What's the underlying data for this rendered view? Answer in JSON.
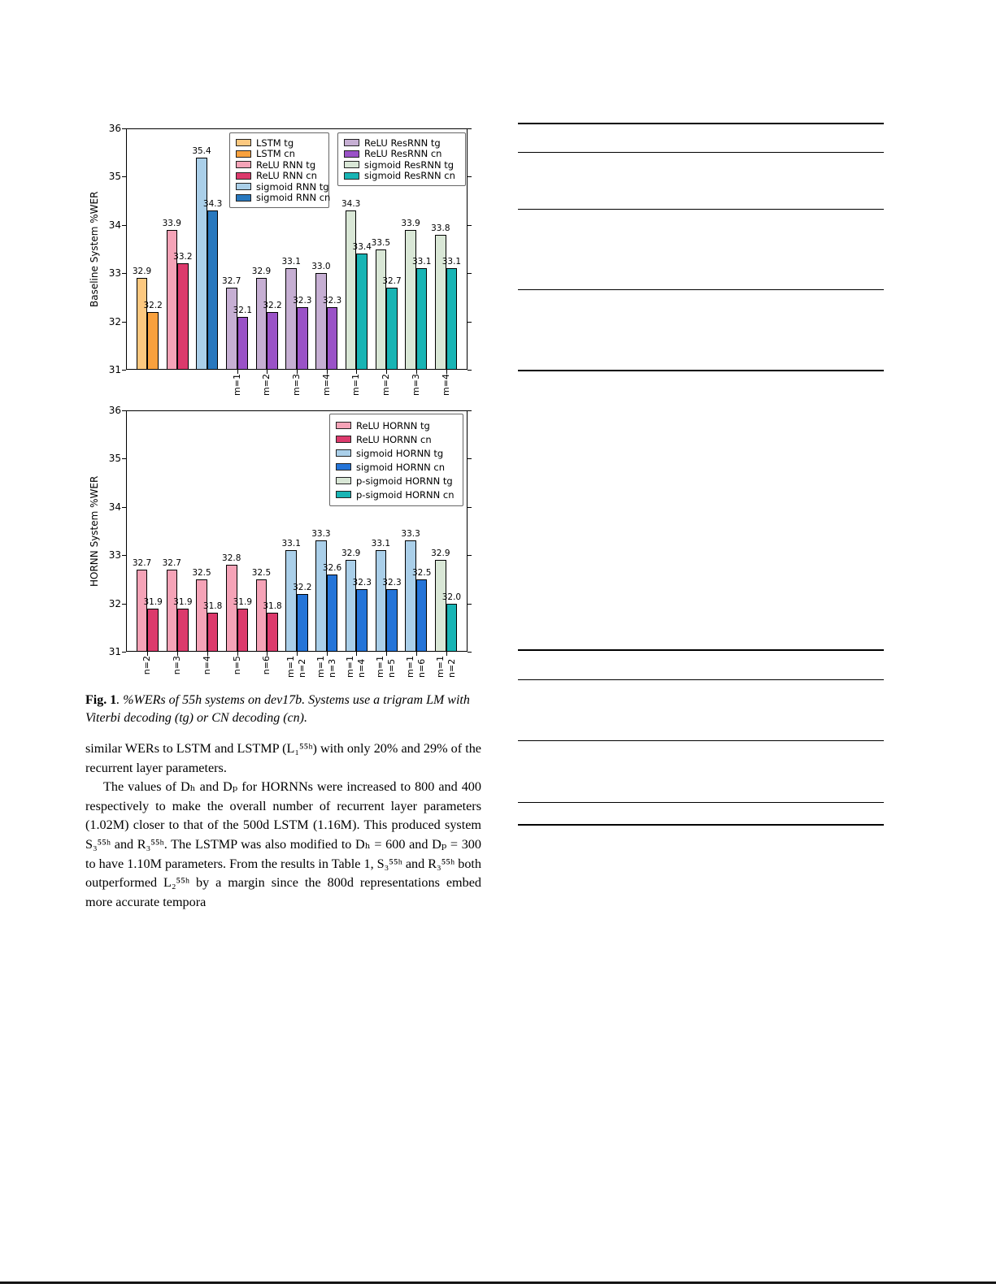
{
  "figure": {
    "caption_label": "Fig. 1",
    "caption_text": ". %WERs of 55h systems on dev17b. Systems use a trigram LM with Viterbi decoding (tg) or CN decoding (cn)."
  },
  "body": {
    "para1": "similar WERs to LSTM and LSTMP (L₁⁵⁵ʰ) with only 20% and 29% of the recurrent layer parameters.",
    "para2": "The values of Dₕ and Dₚ for HORNNs were increased to 800 and 400 respectively to make the overall number of recurrent layer parameters (1.02M) closer to that of the 500d LSTM (1.16M). This produced system S₃⁵⁵ʰ and R₃⁵⁵ʰ. The LSTMP was also modified to Dₕ = 600 and Dₚ = 300 to have 1.10M parameters. From the results in Table 1, S₃⁵⁵ʰ and R₃⁵⁵ʰ both outperformed L₂⁵⁵ʰ by a margin since the 800d representations embed more accurate tempora"
  },
  "chart_data": [
    {
      "type": "bar",
      "ylabel": "Baseline System %WER",
      "ylim": [
        31,
        36
      ],
      "yticks": [
        31,
        32,
        33,
        34,
        35,
        36
      ],
      "grid": false,
      "legend_position": "upper-left-and-upper-right-inside",
      "palette": {
        "lstm_tg": "#fcc87f",
        "lstm_cn": "#f9a13d",
        "relu_rnn_tg": "#f5a3b7",
        "relu_rnn_cn": "#dc3a6c",
        "sigmoid_rnn_tg": "#aacfe9",
        "sigmoid_rnn_cn": "#2878be",
        "relu_resrnn_tg": "#c6afd3",
        "relu_resrnn_cn": "#9a52c7",
        "sigmoid_resrnn_tg": "#d9e7d6",
        "sigmoid_resrnn_cn": "#18b4b4"
      },
      "legend_boxes": [
        [
          {
            "label": "LSTM tg",
            "color": "lstm_tg"
          },
          {
            "label": "LSTM cn",
            "color": "lstm_cn"
          },
          {
            "label": "ReLU RNN tg",
            "color": "relu_rnn_tg"
          },
          {
            "label": "ReLU RNN cn",
            "color": "relu_rnn_cn"
          },
          {
            "label": "sigmoid RNN tg",
            "color": "sigmoid_rnn_tg"
          },
          {
            "label": "sigmoid RNN cn",
            "color": "sigmoid_rnn_cn"
          }
        ],
        [
          {
            "label": "ReLU ResRNN tg",
            "color": "relu_resrnn_tg"
          },
          {
            "label": "ReLU ResRNN cn",
            "color": "relu_resrnn_cn"
          },
          {
            "label": "sigmoid ResRNN tg",
            "color": "sigmoid_resrnn_tg"
          },
          {
            "label": "sigmoid ResRNN cn",
            "color": "sigmoid_resrnn_cn"
          }
        ]
      ],
      "groups": [
        {
          "xlabels": [],
          "bars": [
            {
              "value": 32.9,
              "color": "lstm_tg"
            },
            {
              "value": 32.2,
              "color": "lstm_cn"
            }
          ]
        },
        {
          "xlabels": [],
          "bars": [
            {
              "value": 33.9,
              "color": "relu_rnn_tg"
            },
            {
              "value": 33.2,
              "color": "relu_rnn_cn"
            }
          ]
        },
        {
          "xlabels": [],
          "bars": [
            {
              "value": 35.4,
              "color": "sigmoid_rnn_tg"
            },
            {
              "value": 34.3,
              "color": "sigmoid_rnn_cn"
            }
          ]
        },
        {
          "xlabels": [
            "m=1"
          ],
          "bars": [
            {
              "value": 32.7,
              "color": "relu_resrnn_tg"
            },
            {
              "value": 32.1,
              "color": "relu_resrnn_cn"
            }
          ]
        },
        {
          "xlabels": [
            "m=2"
          ],
          "bars": [
            {
              "value": 32.9,
              "color": "relu_resrnn_tg"
            },
            {
              "value": 32.2,
              "color": "relu_resrnn_cn"
            }
          ]
        },
        {
          "xlabels": [
            "m=3"
          ],
          "bars": [
            {
              "value": 33.1,
              "color": "relu_resrnn_tg"
            },
            {
              "value": 32.3,
              "color": "relu_resrnn_cn"
            }
          ]
        },
        {
          "xlabels": [
            "m=4"
          ],
          "bars": [
            {
              "value": 33.0,
              "color": "relu_resrnn_tg"
            },
            {
              "value": 32.3,
              "color": "relu_resrnn_cn"
            }
          ]
        },
        {
          "xlabels": [
            "m=1"
          ],
          "bars": [
            {
              "value": 34.3,
              "color": "sigmoid_resrnn_tg"
            },
            {
              "value": 33.4,
              "color": "sigmoid_resrnn_cn"
            }
          ]
        },
        {
          "xlabels": [
            "m=2"
          ],
          "bars": [
            {
              "value": 33.5,
              "color": "sigmoid_resrnn_tg"
            },
            {
              "value": 32.7,
              "color": "sigmoid_resrnn_cn"
            }
          ]
        },
        {
          "xlabels": [
            "m=3"
          ],
          "bars": [
            {
              "value": 33.9,
              "color": "sigmoid_resrnn_tg"
            },
            {
              "value": 33.1,
              "color": "sigmoid_resrnn_cn"
            }
          ]
        },
        {
          "xlabels": [
            "m=4"
          ],
          "bars": [
            {
              "value": 33.8,
              "color": "sigmoid_resrnn_tg"
            },
            {
              "value": 33.1,
              "color": "sigmoid_resrnn_cn"
            }
          ]
        }
      ]
    },
    {
      "type": "bar",
      "ylabel": "HORNN System %WER",
      "ylim": [
        31,
        36
      ],
      "yticks": [
        31,
        32,
        33,
        34,
        35,
        36
      ],
      "grid": false,
      "legend_position": "upper-right-inside",
      "palette": {
        "relu_hornn_tg": "#f5a3b7",
        "relu_hornn_cn": "#dc3a6c",
        "sigmoid_hornn_tg": "#aacfe9",
        "sigmoid_hornn_cn": "#2474d8",
        "psigmoid_hornn_tg": "#d9e7d6",
        "psigmoid_hornn_cn": "#18b4b4"
      },
      "legend_boxes": [
        [
          {
            "label": "ReLU HORNN tg",
            "color": "relu_hornn_tg"
          },
          {
            "label": "ReLU HORNN cn",
            "color": "relu_hornn_cn"
          },
          {
            "label": "sigmoid HORNN tg",
            "color": "sigmoid_hornn_tg"
          },
          {
            "label": "sigmoid HORNN cn",
            "color": "sigmoid_hornn_cn"
          },
          {
            "label": "p-sigmoid HORNN tg",
            "color": "psigmoid_hornn_tg"
          },
          {
            "label": "p-sigmoid HORNN cn",
            "color": "psigmoid_hornn_cn"
          }
        ]
      ],
      "groups": [
        {
          "xlabels": [
            "n=2"
          ],
          "bars": [
            {
              "value": 32.7,
              "color": "relu_hornn_tg"
            },
            {
              "value": 31.9,
              "color": "relu_hornn_cn"
            }
          ]
        },
        {
          "xlabels": [
            "n=3"
          ],
          "bars": [
            {
              "value": 32.7,
              "color": "relu_hornn_tg"
            },
            {
              "value": 31.9,
              "color": "relu_hornn_cn"
            }
          ]
        },
        {
          "xlabels": [
            "n=4"
          ],
          "bars": [
            {
              "value": 32.5,
              "color": "relu_hornn_tg"
            },
            {
              "value": 31.8,
              "color": "relu_hornn_cn"
            }
          ]
        },
        {
          "xlabels": [
            "n=5"
          ],
          "bars": [
            {
              "value": 32.8,
              "color": "relu_hornn_tg"
            },
            {
              "value": 31.9,
              "color": "relu_hornn_cn"
            }
          ]
        },
        {
          "xlabels": [
            "n=6"
          ],
          "bars": [
            {
              "value": 32.5,
              "color": "relu_hornn_tg"
            },
            {
              "value": 31.8,
              "color": "relu_hornn_cn"
            }
          ]
        },
        {
          "xlabels": [
            "m=1",
            "n=2"
          ],
          "bars": [
            {
              "value": 33.1,
              "color": "sigmoid_hornn_tg"
            },
            {
              "value": 32.2,
              "color": "sigmoid_hornn_cn"
            }
          ]
        },
        {
          "xlabels": [
            "m=1",
            "n=3"
          ],
          "bars": [
            {
              "value": 33.3,
              "color": "sigmoid_hornn_tg"
            },
            {
              "value": 32.6,
              "color": "sigmoid_hornn_cn"
            }
          ]
        },
        {
          "xlabels": [
            "m=1",
            "n=4"
          ],
          "bars": [
            {
              "value": 32.9,
              "color": "sigmoid_hornn_tg"
            },
            {
              "value": 32.3,
              "color": "sigmoid_hornn_cn"
            }
          ]
        },
        {
          "xlabels": [
            "m=1",
            "n=5"
          ],
          "bars": [
            {
              "value": 33.1,
              "color": "sigmoid_hornn_tg"
            },
            {
              "value": 32.3,
              "color": "sigmoid_hornn_cn"
            }
          ]
        },
        {
          "xlabels": [
            "m=1",
            "n=6"
          ],
          "bars": [
            {
              "value": 33.3,
              "color": "sigmoid_hornn_tg"
            },
            {
              "value": 32.5,
              "color": "sigmoid_hornn_cn"
            }
          ]
        },
        {
          "xlabels": [
            "m=1",
            "n=2"
          ],
          "bars": [
            {
              "value": 32.9,
              "color": "psigmoid_hornn_tg"
            },
            {
              "value": 32.0,
              "color": "psigmoid_hornn_cn"
            }
          ]
        }
      ]
    }
  ]
}
